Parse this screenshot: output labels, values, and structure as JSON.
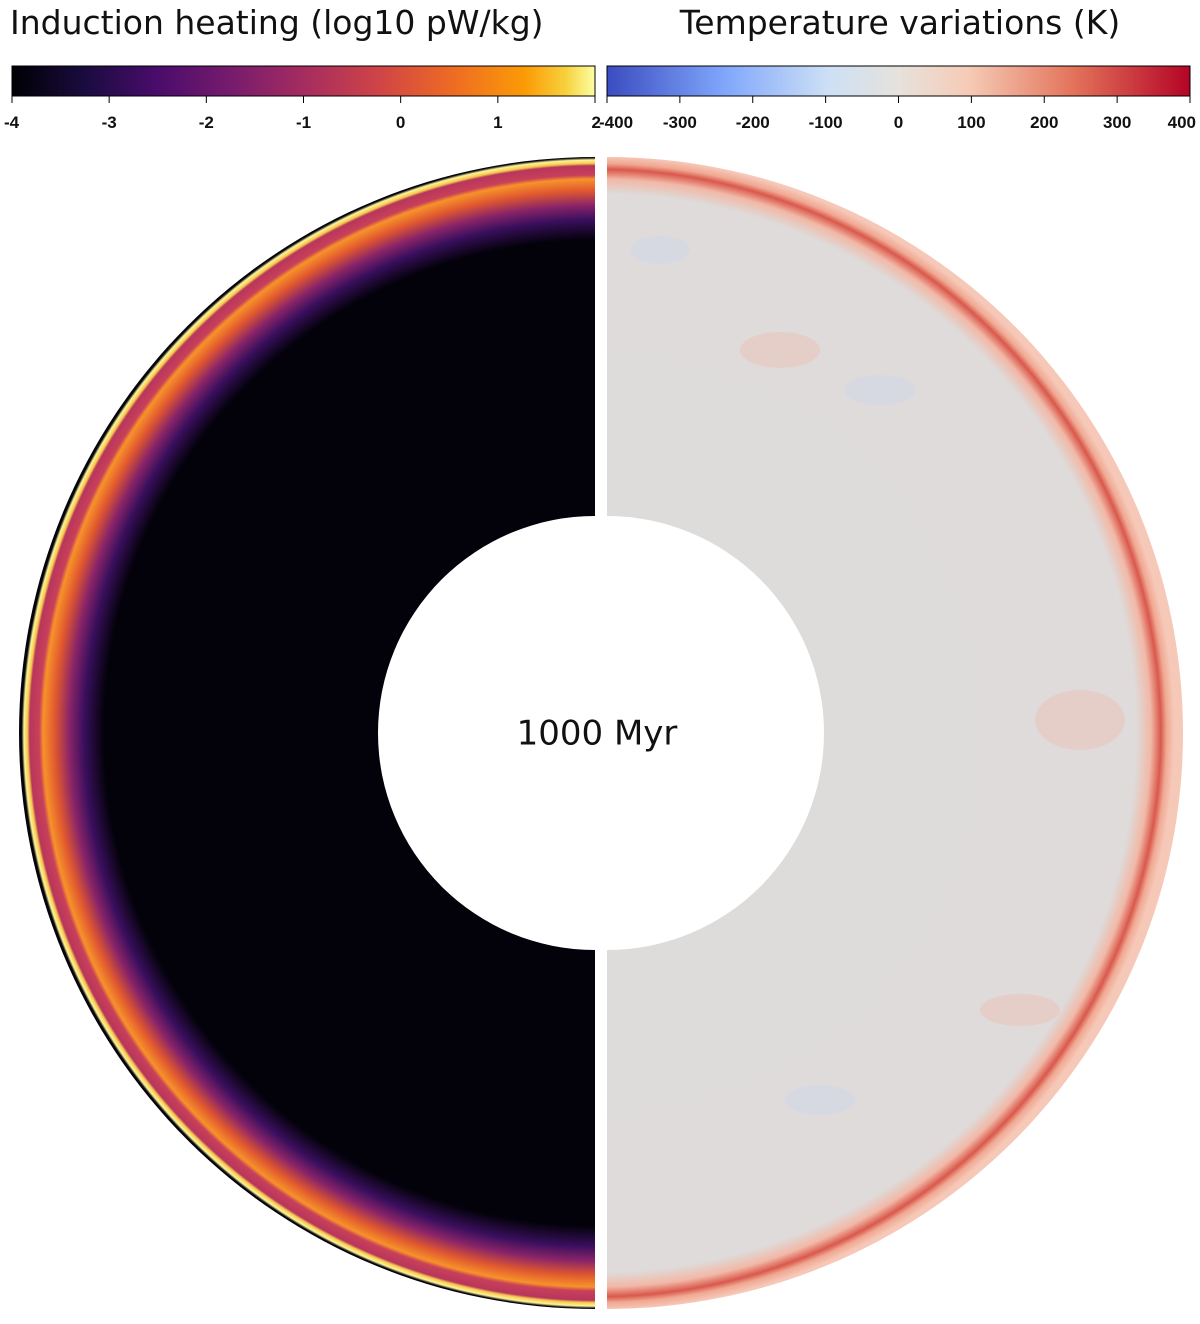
{
  "chart_data": [
    {
      "type": "colorbar",
      "title": "Induction heating (log10 pW/kg)",
      "colormap": "inferno",
      "xlim": [
        -4,
        2
      ],
      "xticks": [
        -4,
        -3,
        -2,
        -1,
        0,
        1,
        2
      ]
    },
    {
      "type": "colorbar",
      "title": "Temperature variations (K)",
      "colormap": "coolwarm",
      "xlim": [
        -400,
        400
      ],
      "xticks": [
        -400,
        -300,
        -200,
        -100,
        0,
        100,
        200,
        300,
        400
      ]
    }
  ],
  "annotation": "1000 Myr"
}
